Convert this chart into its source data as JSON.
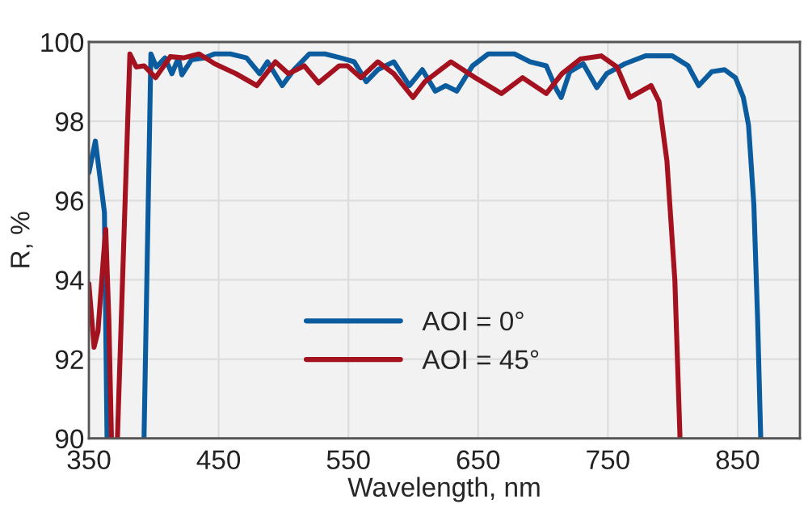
{
  "chart_data": {
    "type": "line",
    "xlabel": "Wavelength, nm",
    "ylabel": "R, %",
    "xlim": [
      350,
      898
    ],
    "xticks": [
      350,
      450,
      550,
      650,
      750,
      850
    ],
    "ylim": [
      90,
      100
    ],
    "yticks": [
      90,
      92,
      94,
      96,
      98,
      100
    ],
    "grid": true,
    "legend": "bottom",
    "line_style": "solid",
    "marker": "none",
    "series": [
      {
        "name": "AOI = 0°",
        "color": "#0b5c9e",
        "x": [
          350,
          355,
          362,
          364,
          378,
          392.5,
          397.8,
          402,
          408.7,
          414,
          419,
          421.7,
          429,
          439,
          447,
          459,
          471.5,
          481.6,
          487.7,
          499,
          508,
          520,
          532,
          544,
          554.5,
          563.8,
          572.7,
          585,
          597,
          607,
          617,
          625,
          633.5,
          645.7,
          657.8,
          678,
          690,
          702.5,
          710.4,
          714,
          720.6,
          731,
          741.5,
          749,
          763,
          779,
          799.6,
          811.8,
          820,
          830,
          840,
          848.3,
          854.4,
          858.4,
          862.5,
          865.4,
          867.8
        ],
        "values": [
          96.7,
          97.5,
          95.7,
          90,
          null,
          90,
          99.7,
          99.37,
          99.6,
          99.2,
          99.6,
          99.17,
          99.55,
          99.6,
          99.7,
          99.7,
          99.6,
          99.2,
          99.5,
          98.9,
          99.3,
          99.7,
          99.7,
          99.6,
          99.5,
          99.0,
          99.3,
          99.5,
          98.9,
          99.3,
          98.76,
          98.9,
          98.76,
          99.4,
          99.7,
          99.7,
          99.5,
          99.4,
          98.8,
          98.6,
          99.25,
          99.45,
          98.85,
          99.2,
          99.45,
          99.65,
          99.65,
          99.4,
          98.9,
          99.25,
          99.3,
          99.1,
          98.6,
          97.9,
          95.9,
          93.0,
          90
        ]
      },
      {
        "name": "AOI = 45°",
        "color": "#a5121f",
        "x": [
          350,
          354,
          357,
          361.3,
          363,
          365.4,
          367.4,
          370,
          372,
          381.6,
          386.5,
          392.5,
          401.4,
          412.7,
          422.9,
          435,
          447,
          463.4,
          479.5,
          493.7,
          503.8,
          516,
          527,
          543,
          549.3,
          559.6,
          572.7,
          585,
          599.8,
          609,
          629,
          647.7,
          668,
          684.3,
          702.5,
          714.6,
          728.8,
          745,
          757,
          767,
          783.3,
          789.4,
          795.5,
          801.6,
          805.6
        ],
        "values": [
          93.9,
          92.3,
          92.7,
          94.6,
          95.27,
          93,
          90,
          null,
          90,
          99.7,
          99.37,
          99.4,
          99.1,
          99.63,
          99.6,
          99.7,
          99.45,
          99.2,
          98.9,
          99.5,
          99.2,
          99.4,
          98.97,
          99.4,
          99.4,
          99.1,
          99.5,
          99.2,
          98.6,
          99.0,
          99.5,
          99.1,
          98.7,
          99.1,
          98.7,
          99.2,
          99.57,
          99.65,
          99.37,
          98.6,
          98.9,
          98.5,
          97.0,
          94.0,
          90
        ]
      }
    ]
  }
}
